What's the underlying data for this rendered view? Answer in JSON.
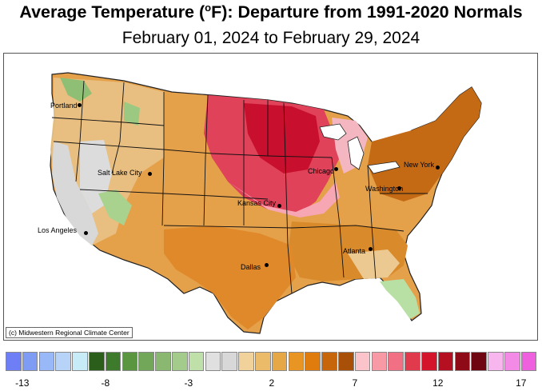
{
  "title_prefix": "Average Temperature (",
  "title_unit_sup": "o",
  "title_suffix": "F): Departure from 1991-2020 Normals",
  "subtitle": "February 01, 2024 to February 29, 2024",
  "credit": "(c) Midwestern Regional Climate Center",
  "cities": [
    {
      "name": "Portland"
    },
    {
      "name": "Salt Lake City"
    },
    {
      "name": "Los Angeles"
    },
    {
      "name": "Kansas City"
    },
    {
      "name": "Chicago"
    },
    {
      "name": "Dallas"
    },
    {
      "name": "Atlanta"
    },
    {
      "name": "Washington"
    },
    {
      "name": "New York"
    }
  ],
  "legend": {
    "colors": [
      "#6e7ff5",
      "#7f9cf5",
      "#99b8f7",
      "#b7d4f8",
      "#c8ecf7",
      "#2b5e1b",
      "#3e7a2c",
      "#5a953f",
      "#72a659",
      "#8ab870",
      "#a3cc8c",
      "#bfe0a9",
      "#e0e0e0",
      "#d8d8d8",
      "#f2d29b",
      "#ebbb6a",
      "#e6a746",
      "#e89524",
      "#e07c0d",
      "#c7650b",
      "#a84f08",
      "#fbc4cb",
      "#f79aa6",
      "#f27083",
      "#e03a4c",
      "#d4142b",
      "#b50f22",
      "#8f0a17",
      "#6e0510",
      "#f8b6ee",
      "#f38ae6",
      "#ee60dd"
    ],
    "tick_labels": [
      "-13",
      "-8",
      "-3",
      "2",
      "7",
      "12",
      "17"
    ]
  }
}
